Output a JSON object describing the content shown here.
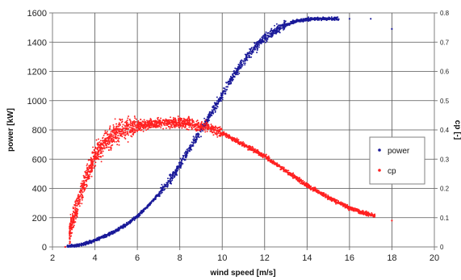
{
  "chart_data": {
    "type": "scatter",
    "title": "",
    "xlabel": "wind speed [m/s]",
    "ylabel": "power [kW]",
    "y2label": "cp [-]",
    "xlim": [
      2,
      20
    ],
    "ylim": [
      0,
      1600
    ],
    "y2lim": [
      0,
      0.8
    ],
    "x_ticks": [
      "2",
      "4",
      "6",
      "8",
      "10",
      "12",
      "14",
      "16",
      "18",
      "20"
    ],
    "y_ticks": [
      "0",
      "200",
      "400",
      "600",
      "800",
      "1000",
      "1200",
      "1400",
      "1600"
    ],
    "y2_ticks": [
      "0",
      "0.1",
      "0.2",
      "0.3",
      "0.4",
      "0.5",
      "0.6",
      "0.7",
      "0.8"
    ],
    "grid": true,
    "legend_position": "right-middle",
    "series": [
      {
        "name": "power",
        "axis": "left",
        "color": "#1a1a99",
        "marker": "dot",
        "x": [
          2.6,
          3.0,
          3.5,
          4.0,
          4.5,
          5.0,
          5.5,
          6.0,
          6.5,
          7.0,
          7.5,
          8.0,
          8.5,
          9.0,
          9.5,
          10.0,
          10.5,
          11.0,
          11.5,
          12.0,
          12.5,
          13.0,
          13.5,
          14.0,
          14.5,
          15.0,
          16.0,
          17.0,
          18.0
        ],
        "y": [
          0,
          5,
          20,
          45,
          75,
          110,
          155,
          210,
          280,
          360,
          450,
          560,
          680,
          800,
          920,
          1040,
          1160,
          1270,
          1360,
          1430,
          1480,
          1520,
          1545,
          1555,
          1560,
          1560,
          1560,
          1560,
          1490
        ]
      },
      {
        "name": "cp",
        "axis": "right",
        "color": "#ff2020",
        "marker": "dot",
        "x": [
          2.6,
          3.0,
          3.5,
          4.0,
          4.5,
          5.0,
          5.5,
          6.0,
          6.5,
          7.0,
          7.5,
          8.0,
          8.5,
          9.0,
          9.5,
          10.0,
          10.5,
          11.0,
          11.5,
          12.0,
          12.5,
          13.0,
          13.5,
          14.0,
          14.5,
          15.0,
          15.5,
          16.0,
          16.5,
          17.0,
          18.0
        ],
        "y": [
          0.0,
          0.1,
          0.22,
          0.31,
          0.36,
          0.39,
          0.405,
          0.415,
          0.42,
          0.425,
          0.425,
          0.425,
          0.42,
          0.415,
          0.405,
          0.39,
          0.37,
          0.35,
          0.33,
          0.31,
          0.285,
          0.26,
          0.235,
          0.21,
          0.19,
          0.17,
          0.15,
          0.135,
          0.12,
          0.11,
          0.09
        ]
      }
    ]
  }
}
